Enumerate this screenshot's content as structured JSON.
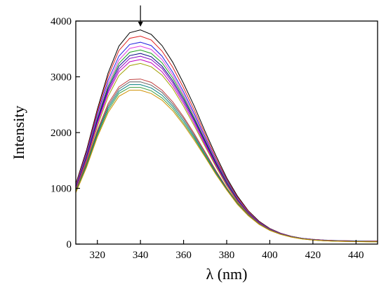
{
  "chart_data": {
    "type": "line",
    "title": "",
    "xlabel": "λ (nm)",
    "ylabel": "Intensity",
    "xlim": [
      310,
      450
    ],
    "ylim": [
      0,
      4000
    ],
    "xticks": [
      320,
      340,
      360,
      380,
      400,
      420,
      440
    ],
    "yticks": [
      0,
      1000,
      2000,
      3000,
      4000
    ],
    "grid": false,
    "legend": "none",
    "annotations": [
      {
        "type": "arrow",
        "x": 340,
        "y_from": 4280,
        "y_to": 3900
      }
    ],
    "x": [
      310,
      315,
      320,
      325,
      330,
      335,
      340,
      345,
      350,
      355,
      360,
      365,
      370,
      375,
      380,
      385,
      390,
      395,
      400,
      405,
      410,
      415,
      420,
      425,
      430,
      435,
      440,
      445,
      450
    ],
    "series": [
      {
        "color": "#000000",
        "values": [
          1080,
          1690,
          2420,
          3070,
          3550,
          3790,
          3840,
          3760,
          3560,
          3260,
          2880,
          2470,
          2020,
          1590,
          1190,
          860,
          600,
          410,
          280,
          195,
          140,
          105,
          85,
          72,
          64,
          60,
          57,
          55,
          54
        ]
      },
      {
        "color": "#e02020",
        "values": [
          1060,
          1660,
          2380,
          3010,
          3470,
          3690,
          3730,
          3660,
          3460,
          3170,
          2800,
          2400,
          1970,
          1550,
          1160,
          840,
          590,
          400,
          275,
          192,
          138,
          104,
          84,
          71,
          63,
          59,
          56,
          54,
          53
        ]
      },
      {
        "color": "#2020e0",
        "values": [
          1040,
          1630,
          2330,
          2940,
          3370,
          3580,
          3620,
          3560,
          3370,
          3080,
          2730,
          2340,
          1920,
          1510,
          1140,
          820,
          575,
          392,
          270,
          189,
          136,
          103,
          83,
          70,
          62,
          58,
          55,
          53,
          52
        ]
      },
      {
        "color": "#e040e0",
        "values": [
          1030,
          1600,
          2280,
          2880,
          3300,
          3510,
          3550,
          3490,
          3310,
          3030,
          2680,
          2300,
          1890,
          1490,
          1120,
          810,
          568,
          388,
          267,
          187,
          135,
          102,
          82,
          69,
          61,
          57,
          54,
          52,
          51
        ]
      },
      {
        "color": "#20a020",
        "values": [
          1020,
          1580,
          2250,
          2830,
          3240,
          3440,
          3480,
          3420,
          3250,
          2980,
          2640,
          2260,
          1860,
          1470,
          1110,
          800,
          562,
          384,
          264,
          185,
          134,
          101,
          81,
          68,
          60,
          56,
          53,
          51,
          50
        ]
      },
      {
        "color": "#000080",
        "values": [
          1010,
          1560,
          2220,
          2790,
          3190,
          3380,
          3420,
          3360,
          3190,
          2930,
          2600,
          2230,
          1840,
          1450,
          1090,
          790,
          556,
          380,
          262,
          184,
          133,
          100,
          80,
          67,
          59,
          55,
          52,
          50,
          49
        ]
      },
      {
        "color": "#8000c0",
        "values": [
          1000,
          1540,
          2190,
          2750,
          3140,
          3330,
          3370,
          3310,
          3150,
          2890,
          2560,
          2200,
          1810,
          1430,
          1080,
          780,
          550,
          377,
          260,
          182,
          132,
          99,
          79,
          66,
          58,
          54,
          51,
          49,
          48
        ]
      },
      {
        "color": "#c000c0",
        "values": [
          990,
          1520,
          2160,
          2710,
          3090,
          3270,
          3310,
          3250,
          3090,
          2840,
          2520,
          2160,
          1780,
          1410,
          1060,
          770,
          544,
          373,
          258,
          181,
          131,
          98,
          78,
          65,
          57,
          53,
          50,
          48,
          47
        ]
      },
      {
        "color": "#a0a000",
        "values": [
          970,
          1490,
          2110,
          2650,
          3020,
          3200,
          3240,
          3180,
          3030,
          2790,
          2470,
          2120,
          1750,
          1390,
          1050,
          760,
          538,
          369,
          255,
          179,
          130,
          97,
          77,
          64,
          56,
          52,
          49,
          47,
          46
        ]
      },
      {
        "color": "#c04040",
        "values": [
          960,
          1460,
          2040,
          2520,
          2820,
          2950,
          2960,
          2900,
          2760,
          2550,
          2280,
          1980,
          1650,
          1320,
          1010,
          740,
          530,
          366,
          253,
          178,
          129,
          96,
          76,
          63,
          55,
          51,
          48,
          46,
          45
        ]
      },
      {
        "color": "#606060",
        "values": [
          950,
          1440,
          2010,
          2480,
          2780,
          2910,
          2910,
          2850,
          2720,
          2510,
          2250,
          1950,
          1630,
          1300,
          1000,
          735,
          525,
          363,
          251,
          177,
          128,
          95,
          75,
          62,
          54,
          50,
          47,
          45,
          44
        ]
      },
      {
        "color": "#008080",
        "values": [
          940,
          1420,
          1980,
          2440,
          2740,
          2860,
          2860,
          2800,
          2670,
          2470,
          2210,
          1920,
          1600,
          1280,
          990,
          725,
          520,
          360,
          249,
          176,
          127,
          94,
          74,
          61,
          53,
          49,
          46,
          44,
          43
        ]
      },
      {
        "color": "#40a040",
        "values": [
          930,
          1400,
          1950,
          2400,
          2700,
          2810,
          2810,
          2750,
          2620,
          2430,
          2170,
          1890,
          1580,
          1260,
          980,
          718,
          515,
          357,
          247,
          175,
          126,
          93,
          73,
          60,
          52,
          48,
          45,
          43,
          42
        ]
      },
      {
        "color": "#d09000",
        "values": [
          920,
          1380,
          1920,
          2360,
          2650,
          2760,
          2760,
          2700,
          2580,
          2390,
          2140,
          1860,
          1560,
          1250,
          970,
          710,
          510,
          354,
          245,
          174,
          125,
          92,
          72,
          59,
          51,
          47,
          44,
          42,
          41
        ]
      }
    ]
  }
}
